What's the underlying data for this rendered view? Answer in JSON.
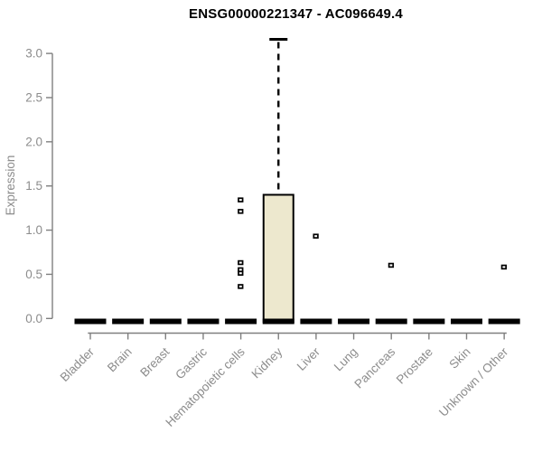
{
  "window": {
    "background": "#ffffff"
  },
  "chart_data": {
    "type": "boxplot",
    "title": "ENSG00000221347 - AC096649.4",
    "ylabel": "Expression",
    "xlabel": "",
    "ylim": [
      0,
      3.2
    ],
    "yticks": [
      0,
      0.5,
      1,
      1.5,
      2,
      2.5,
      3
    ],
    "ytick_labels": [
      "0.0",
      "0.5",
      "1.0",
      "1.5",
      "2.0",
      "2.5",
      "3.0"
    ],
    "grid": false,
    "legend": null,
    "x_label_rotation_deg": 45,
    "categories": [
      "Bladder",
      "Brain",
      "Breast",
      "Gastric",
      "Hematopoietic cells",
      "Kidney",
      "Liver",
      "Lung",
      "Pancreas",
      "Prostate",
      "Skin",
      "Unknown / Other"
    ],
    "boxes": [
      {
        "category": "Bladder",
        "q1": 0,
        "median": 0,
        "q3": 0,
        "whisker_low": 0,
        "whisker_high": 0,
        "outliers": []
      },
      {
        "category": "Brain",
        "q1": 0,
        "median": 0,
        "q3": 0,
        "whisker_low": 0,
        "whisker_high": 0,
        "outliers": []
      },
      {
        "category": "Breast",
        "q1": 0,
        "median": 0,
        "q3": 0,
        "whisker_low": 0,
        "whisker_high": 0,
        "outliers": []
      },
      {
        "category": "Gastric",
        "q1": 0,
        "median": 0,
        "q3": 0,
        "whisker_low": 0,
        "whisker_high": 0,
        "outliers": []
      },
      {
        "category": "Hematopoietic cells",
        "q1": 0,
        "median": 0,
        "q3": 0,
        "whisker_low": 0,
        "whisker_high": 0,
        "outliers": [
          1.34,
          1.21,
          0.63,
          0.55,
          0.51,
          0.36
        ]
      },
      {
        "category": "Kidney",
        "q1": 0,
        "median": 0,
        "q3": 1.4,
        "whisker_low": 0,
        "whisker_high": 3.16,
        "outliers": []
      },
      {
        "category": "Liver",
        "q1": 0,
        "median": 0,
        "q3": 0,
        "whisker_low": 0,
        "whisker_high": 0,
        "outliers": [
          0.93
        ]
      },
      {
        "category": "Lung",
        "q1": 0,
        "median": 0,
        "q3": 0,
        "whisker_low": 0,
        "whisker_high": 0,
        "outliers": []
      },
      {
        "category": "Pancreas",
        "q1": 0,
        "median": 0,
        "q3": 0,
        "whisker_low": 0,
        "whisker_high": 0,
        "outliers": [
          0.6
        ]
      },
      {
        "category": "Prostate",
        "q1": 0,
        "median": 0,
        "q3": 0,
        "whisker_low": 0,
        "whisker_high": 0,
        "outliers": []
      },
      {
        "category": "Skin",
        "q1": 0,
        "median": 0,
        "q3": 0,
        "whisker_low": 0,
        "whisker_high": 0,
        "outliers": []
      },
      {
        "category": "Unknown / Other",
        "q1": 0,
        "median": 0,
        "q3": 0,
        "whisker_low": 0,
        "whisker_high": 0,
        "outliers": [
          0.58
        ]
      }
    ],
    "colors": {
      "background": "#FFFFFF",
      "box_fill": "#EDE8CE",
      "box_stroke": "#000000",
      "median": "#000000",
      "whisker": "#000000",
      "axis": "#7F7F7F",
      "tick_label": "#8C8C8C",
      "title": "#000000",
      "outlier_stroke": "#000000",
      "outlier_fill": "#FFFFFF"
    }
  }
}
